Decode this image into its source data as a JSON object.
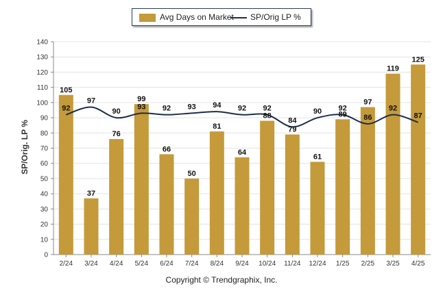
{
  "chart_data": {
    "type": "bar",
    "categories": [
      "2/24",
      "3/24",
      "4/24",
      "5/24",
      "6/24",
      "7/24",
      "8/24",
      "9/24",
      "10/24",
      "11/24",
      "12/24",
      "1/25",
      "2/25",
      "3/25",
      "4/25"
    ],
    "series": [
      {
        "name": "Avg Days on Market",
        "type": "bar",
        "values": [
          105,
          37,
          76,
          99,
          66,
          50,
          81,
          64,
          88,
          79,
          61,
          89,
          97,
          119,
          125
        ]
      },
      {
        "name": "SP/Orig LP %",
        "type": "line",
        "values": [
          92,
          97,
          90,
          93,
          92,
          93,
          94,
          92,
          92,
          84,
          90,
          92,
          86,
          92,
          87
        ]
      }
    ],
    "ylabel": "SP/Orig. LP %",
    "ylim": [
      0,
      140
    ],
    "yticks": [
      0,
      10,
      20,
      30,
      40,
      50,
      60,
      70,
      80,
      90,
      100,
      110,
      120,
      130,
      140
    ],
    "grid": true,
    "legend_position": "top-center",
    "colors": {
      "bar": "#c49a3a",
      "line": "#1b2c4a"
    }
  },
  "legend": {
    "bar_label": "Avg Days on Market",
    "line_label": "SP/Orig LP %"
  },
  "footer": {
    "copyright": "Copyright © Trendgraphix, Inc."
  }
}
